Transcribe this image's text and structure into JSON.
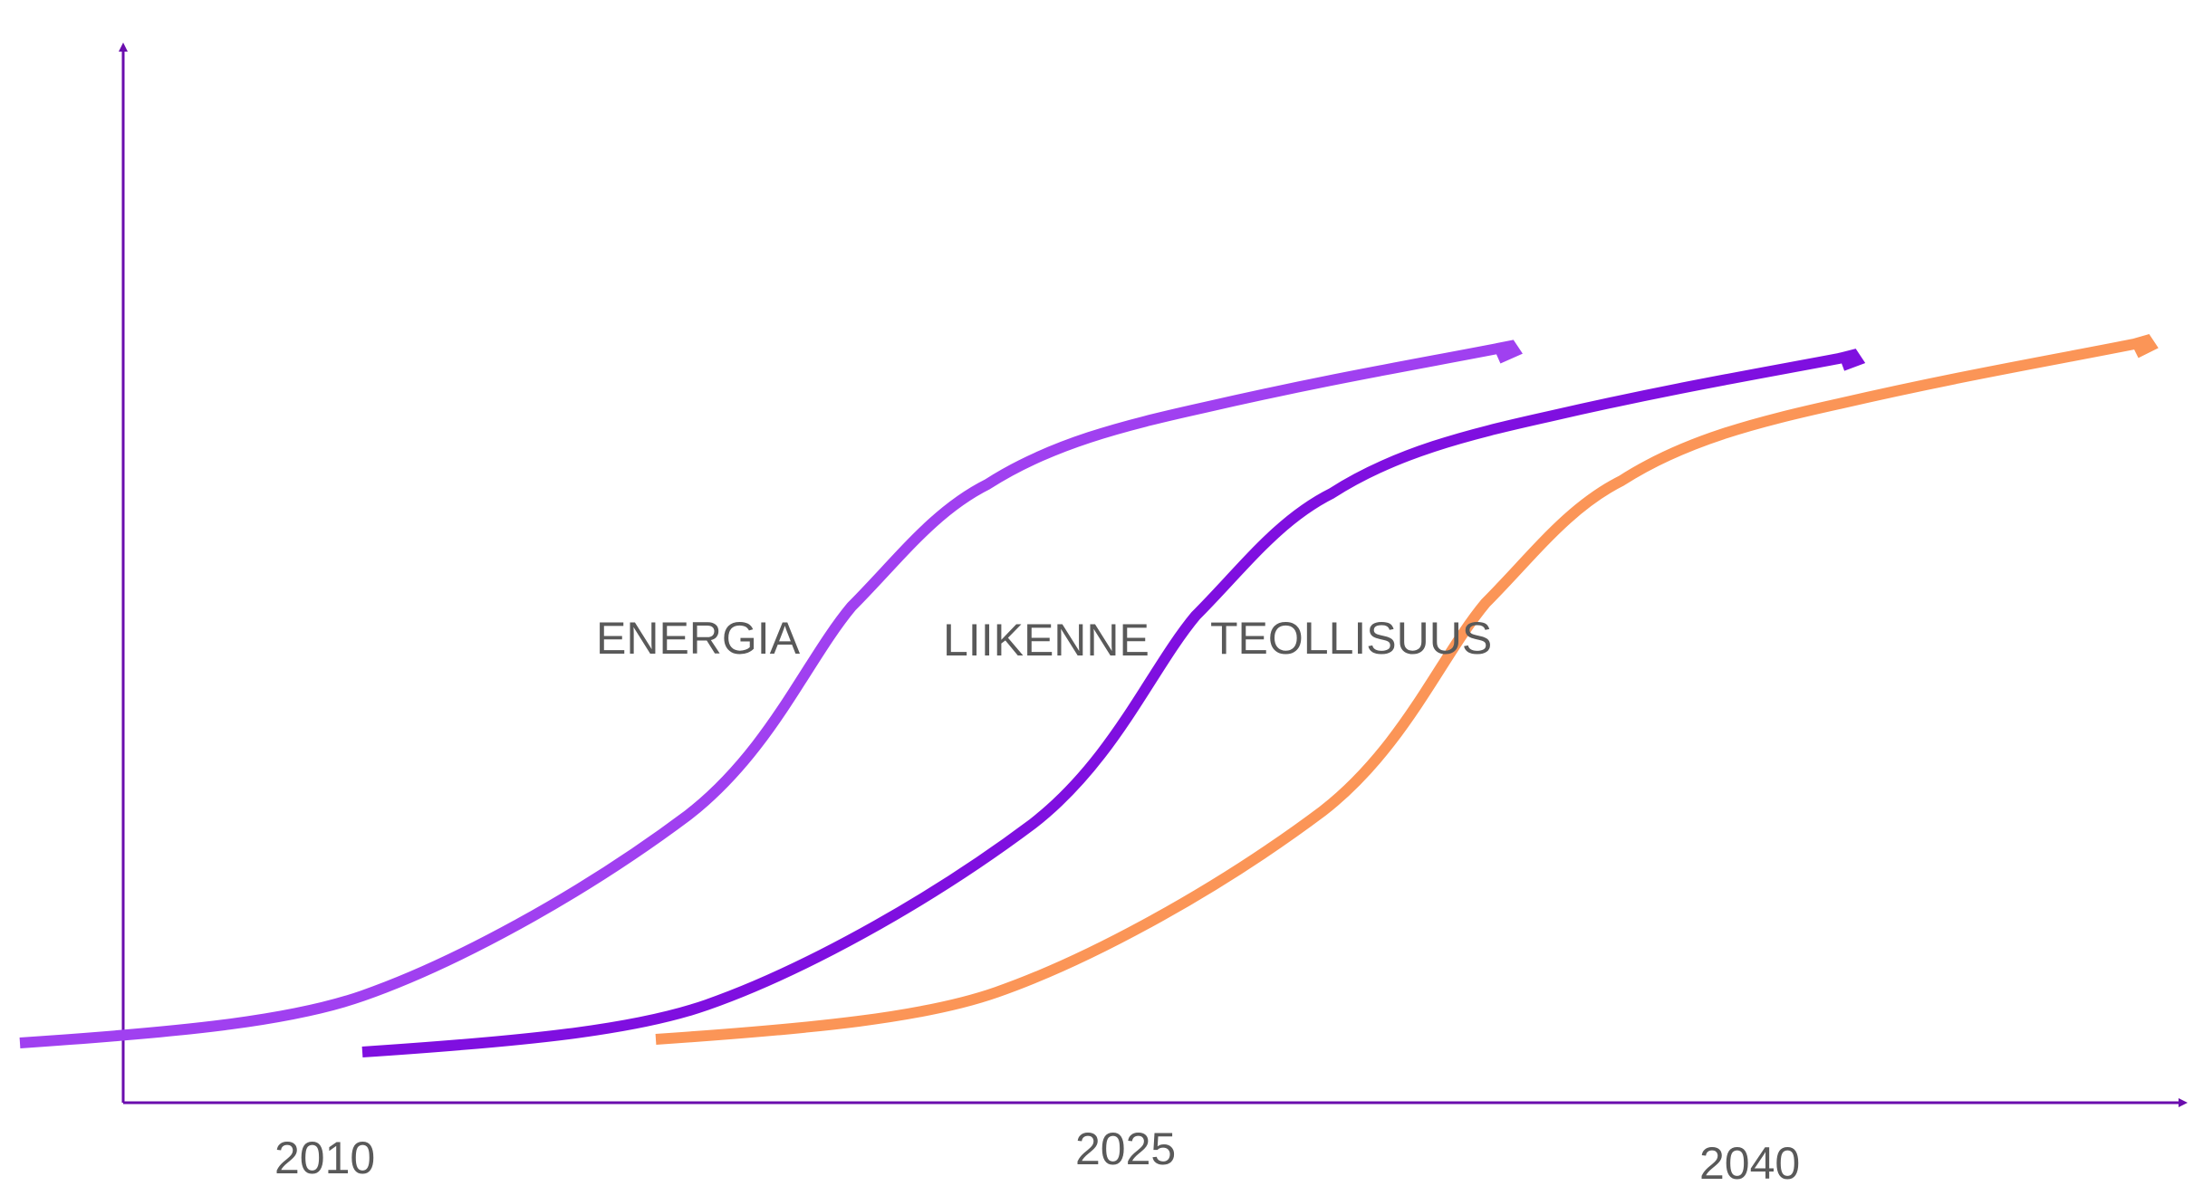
{
  "chart_data": {
    "type": "line",
    "title": "",
    "xlabel": "",
    "ylabel": "",
    "axis_color": "#6a0dad",
    "x_ticks": [
      "2010",
      "2025",
      "2040"
    ],
    "series": [
      {
        "name": "ENERGIA",
        "color": "#a040f0"
      },
      {
        "name": "LIIKENNE",
        "color": "#7f0fe0"
      },
      {
        "name": "TEOLLISUUS",
        "color": "#fb9557"
      }
    ],
    "grid": false,
    "legend": "none"
  }
}
